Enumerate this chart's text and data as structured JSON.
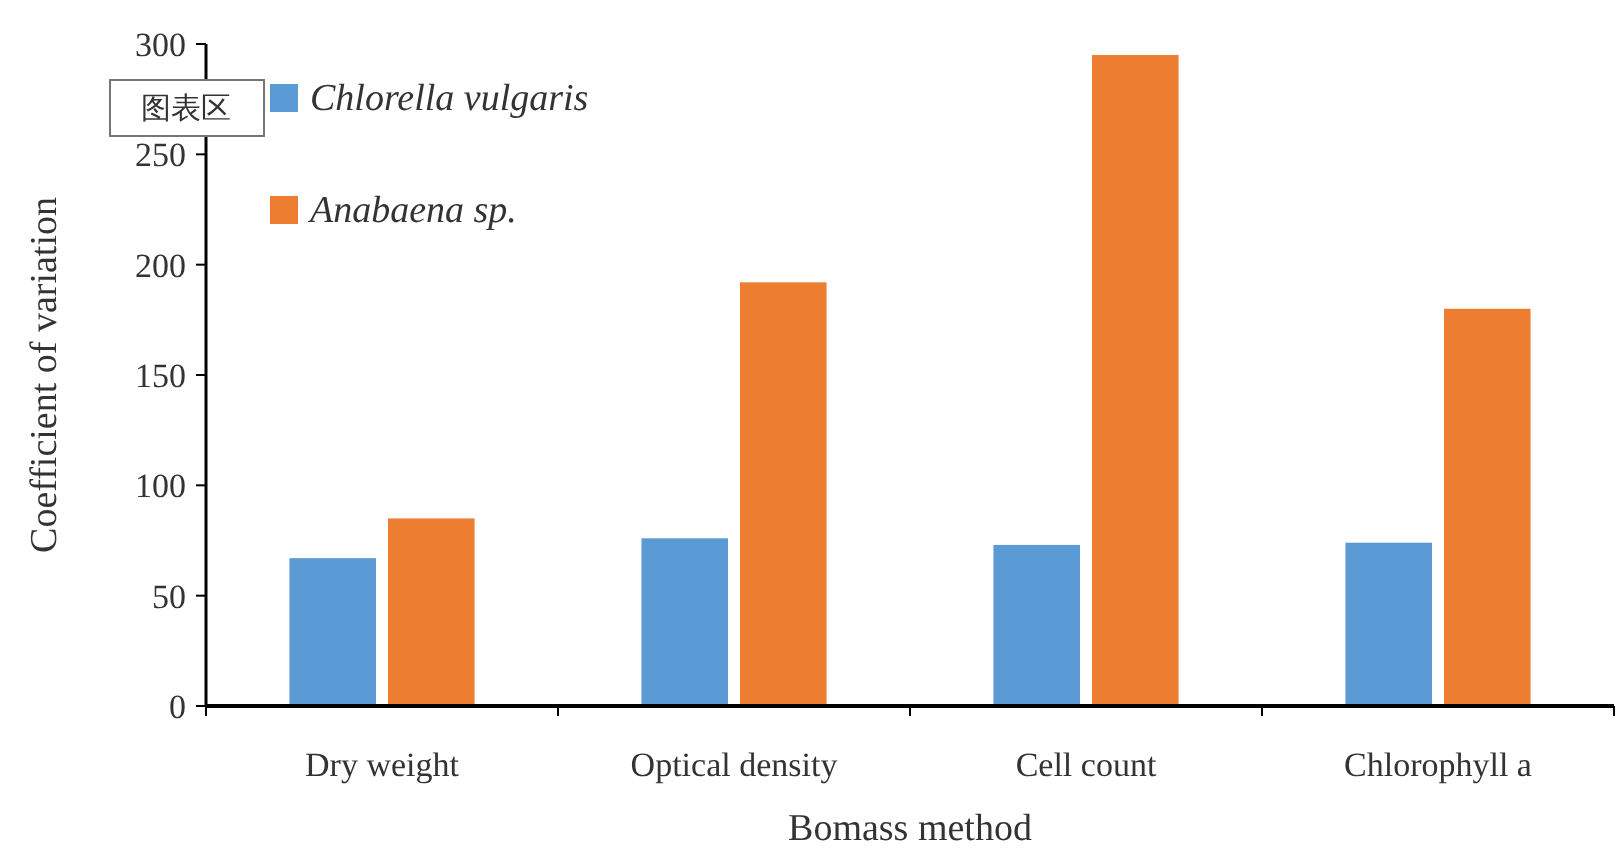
{
  "chart_data": {
    "type": "bar",
    "xlabel": "Bomass method",
    "ylabel": "Coefficient of variation",
    "categories": [
      "Dry weight",
      "Optical density",
      "Cell count",
      "Chlorophyll a"
    ],
    "series": [
      {
        "name": "Chlorella vulgaris",
        "color": "#5b9bd5",
        "values": [
          67,
          76,
          73,
          74
        ]
      },
      {
        "name": "Anabaena sp.",
        "color": "#ed7d31",
        "values": [
          85,
          192,
          295,
          180
        ]
      }
    ],
    "ylim": [
      0,
      300
    ],
    "yticks": [
      0,
      50,
      100,
      150,
      200,
      250,
      300
    ],
    "grid": false,
    "legend": "top left",
    "annotations": [
      "图表区"
    ]
  }
}
